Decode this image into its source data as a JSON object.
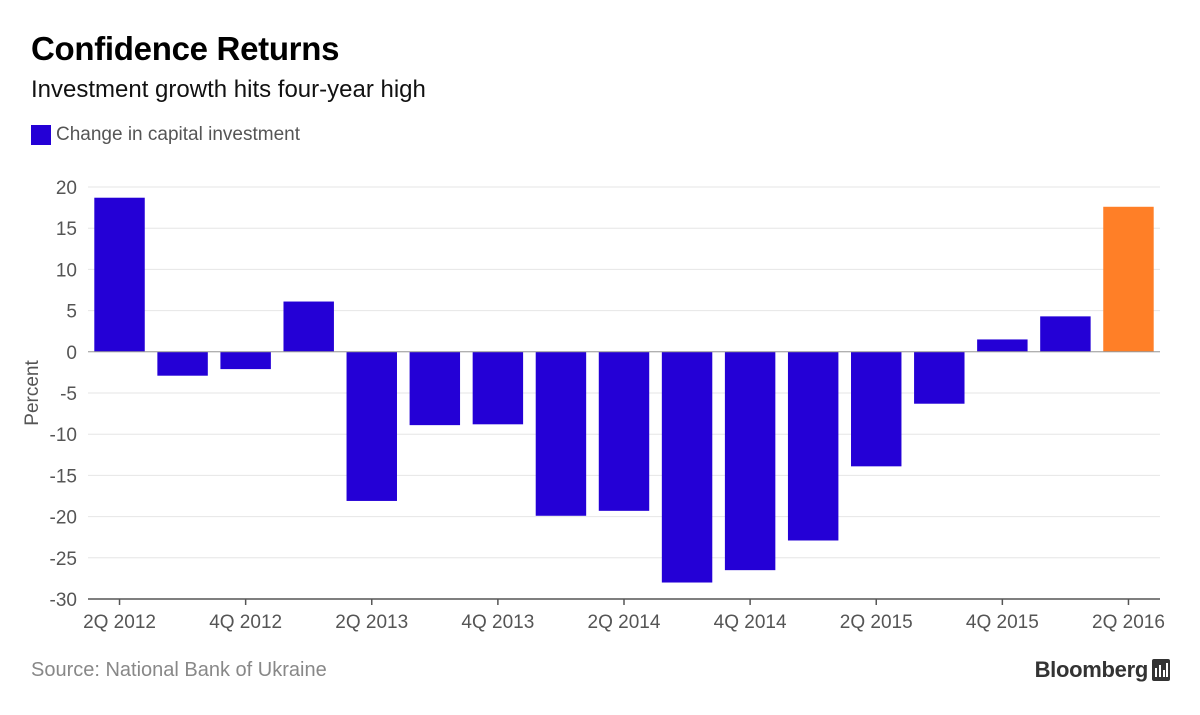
{
  "header": {
    "title": "Confidence Returns",
    "subtitle": "Investment growth hits four-year high"
  },
  "footer": {
    "source": "Source: National Bank of Ukraine",
    "brand": "Bloomberg",
    "brand_icon": "bloomberg-terminal-icon"
  },
  "colors": {
    "primary": "#2400d6",
    "highlight": "#ff7f27",
    "grid": "#e6e6e6",
    "axis_text": "#555555"
  },
  "chart_data": {
    "type": "bar",
    "ylabel": "Percent",
    "xlabel": "",
    "ylim": [
      -30,
      20
    ],
    "yticks": [
      20,
      15,
      10,
      5,
      0,
      -5,
      -10,
      -15,
      -20,
      -25,
      -30
    ],
    "grid": true,
    "legend_position": "top-left",
    "categories": [
      "2Q 2012",
      "3Q 2012",
      "4Q 2012",
      "1Q 2013",
      "2Q 2013",
      "3Q 2013",
      "4Q 2013",
      "1Q 2014",
      "2Q 2014",
      "3Q 2014",
      "4Q 2014",
      "1Q 2015",
      "2Q 2015",
      "3Q 2015",
      "4Q 2015",
      "1Q 2016",
      "2Q 2016"
    ],
    "xtick_labels": [
      "2Q 2012",
      "4Q 2012",
      "2Q 2013",
      "4Q 2013",
      "2Q 2014",
      "4Q 2014",
      "2Q 2015",
      "4Q 2015",
      "2Q 2016"
    ],
    "series": [
      {
        "name": "Change in capital investment",
        "color": "#2400d6",
        "highlight_color": "#ff7f27",
        "highlight_index": 16,
        "values": [
          18.7,
          -2.9,
          -2.1,
          6.1,
          -18.1,
          -8.9,
          -8.8,
          -19.9,
          -19.3,
          -28.0,
          -26.5,
          -22.9,
          -13.9,
          -6.3,
          1.5,
          4.3,
          17.6
        ]
      }
    ]
  }
}
